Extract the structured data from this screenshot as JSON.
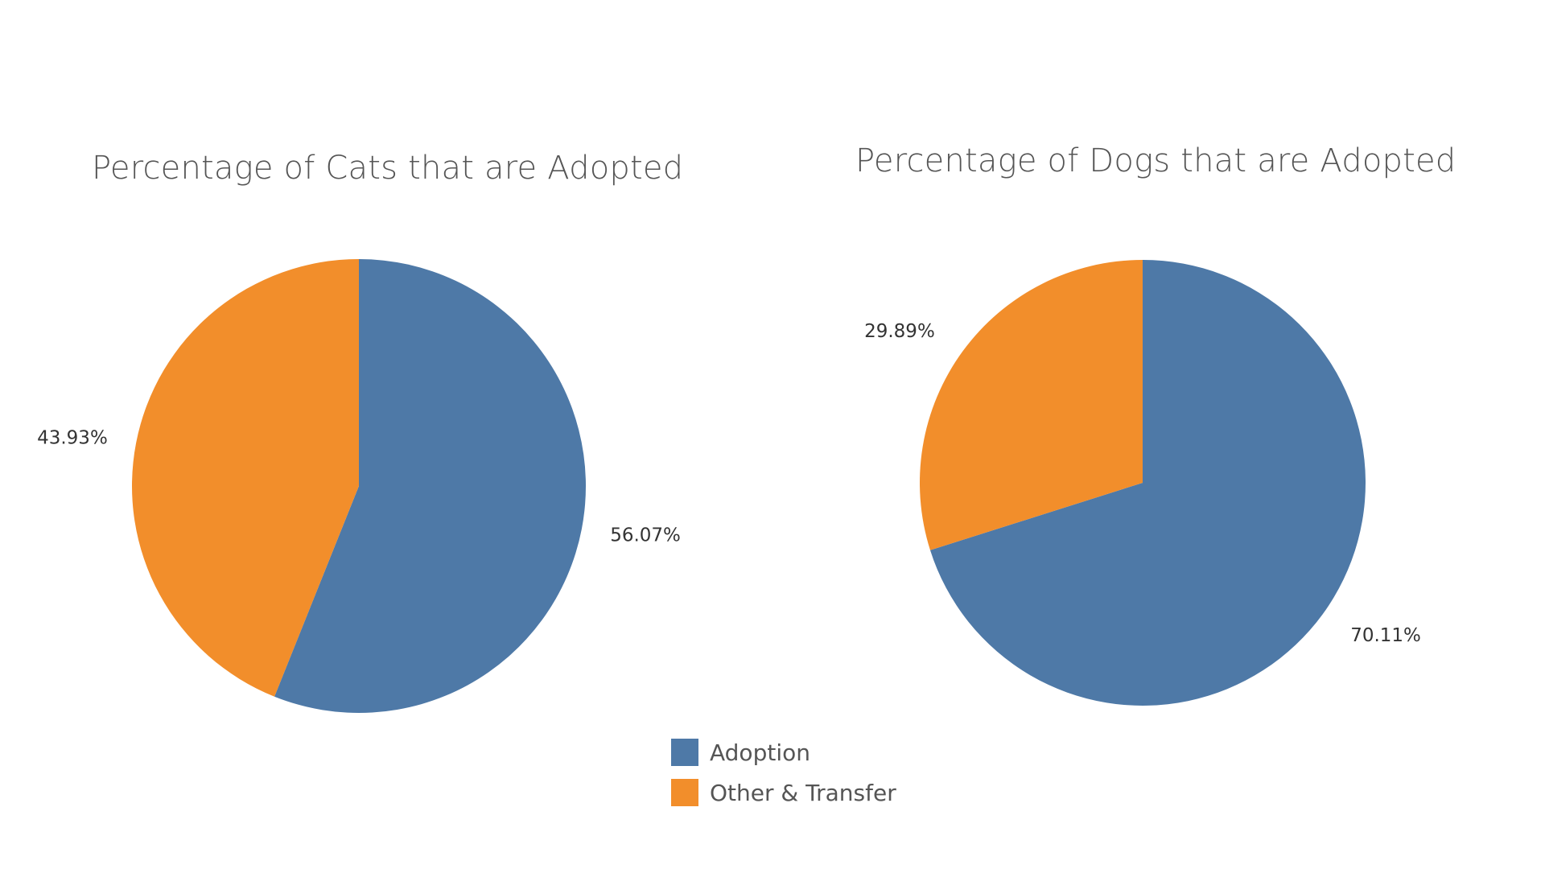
{
  "colors": {
    "adoption": "#4e79a7",
    "other_transfer": "#f28e2b"
  },
  "legend": {
    "items": [
      {
        "label": "Adoption",
        "color": "#4e79a7"
      },
      {
        "label": "Other & Transfer",
        "color": "#f28e2b"
      }
    ]
  },
  "chart_data": [
    {
      "type": "pie",
      "title": "Percentage of Cats that are Adopted",
      "categories": [
        "Adoption",
        "Other & Transfer"
      ],
      "values": [
        56.07,
        43.93
      ],
      "labels": [
        "56.07%",
        "43.93%"
      ],
      "colors": [
        "#4e79a7",
        "#f28e2b"
      ],
      "legend_position": "bottom-center"
    },
    {
      "type": "pie",
      "title": "Percentage of Dogs that are Adopted",
      "categories": [
        "Adoption",
        "Other & Transfer"
      ],
      "values": [
        70.11,
        29.89
      ],
      "labels": [
        "70.11%",
        "29.89%"
      ],
      "colors": [
        "#4e79a7",
        "#f28e2b"
      ],
      "legend_position": "bottom-center"
    }
  ]
}
